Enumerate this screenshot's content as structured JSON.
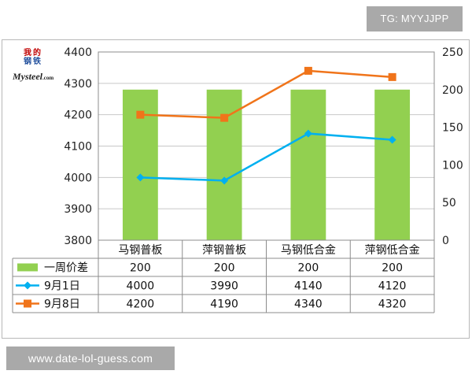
{
  "watermark_top": "TG: MYYJJPP",
  "watermark_bottom": "www.date-lol-guess.com",
  "logo": {
    "chars": [
      "我",
      "的",
      "钢",
      "铁"
    ],
    "text": "Mysteel",
    "suffix": ".com"
  },
  "chart_data": {
    "type": "bar",
    "categories": [
      "马钢普板",
      "萍钢普板",
      "马钢低合金",
      "萍钢低合金"
    ],
    "y_left": {
      "ticks": [
        3800,
        3900,
        4000,
        4100,
        4200,
        4300,
        4400
      ],
      "range": [
        3800,
        4400
      ]
    },
    "y_right": {
      "ticks": [
        0,
        50,
        100,
        150,
        200,
        250
      ],
      "range": [
        0,
        250
      ]
    },
    "series": [
      {
        "name": "一周价差",
        "type": "bar",
        "axis": "right",
        "color": "#92d050",
        "values": [
          200,
          200,
          200,
          200
        ],
        "labels": [
          "200",
          "200",
          "200",
          "200"
        ]
      },
      {
        "name": "9月1日",
        "type": "line",
        "axis": "left",
        "color": "#00b0f0",
        "marker": "diamond",
        "values": [
          4000,
          3990,
          4140,
          4120
        ],
        "labels": [
          "4000",
          "3990",
          "4140",
          "4120"
        ]
      },
      {
        "name": "9月8日",
        "type": "line",
        "axis": "left",
        "color": "#f0741a",
        "marker": "square",
        "values": [
          4200,
          4190,
          4340,
          4320
        ],
        "labels": [
          "4200",
          "4190",
          "4340",
          "4320"
        ]
      }
    ],
    "grid": true,
    "legend": "data-table"
  }
}
